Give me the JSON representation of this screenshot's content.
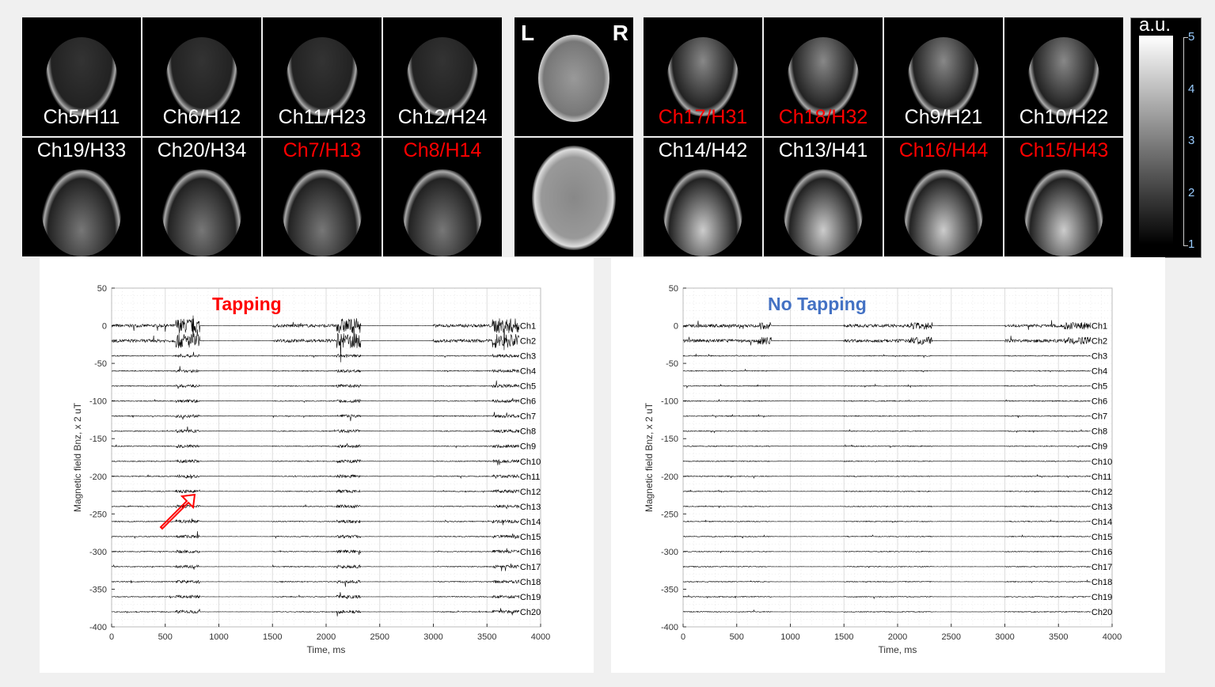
{
  "mri": {
    "left_grid": [
      {
        "label": "Ch5/H11",
        "red": false
      },
      {
        "label": "Ch6/H12",
        "red": false
      },
      {
        "label": "Ch11/H23",
        "red": false
      },
      {
        "label": "Ch12/H24",
        "red": false
      },
      {
        "label": "Ch19/H33",
        "red": false
      },
      {
        "label": "Ch20/H34",
        "red": false
      },
      {
        "label": "Ch7/H13",
        "red": true
      },
      {
        "label": "Ch8/H14",
        "red": true
      }
    ],
    "orientation": {
      "left": "L",
      "right": "R"
    },
    "right_grid": [
      {
        "label": "Ch17/H31",
        "red": true
      },
      {
        "label": "Ch18/H32",
        "red": true
      },
      {
        "label": "Ch9/H21",
        "red": false
      },
      {
        "label": "Ch10/H22",
        "red": false
      },
      {
        "label": "Ch14/H42",
        "red": false
      },
      {
        "label": "Ch13/H41",
        "red": false
      },
      {
        "label": "Ch16/H44",
        "red": true
      },
      {
        "label": "Ch15/H43",
        "red": true
      }
    ],
    "colorbar": {
      "title": "a.u.",
      "ticks": [
        "5",
        "4",
        "3",
        "2",
        "1"
      ],
      "range": [
        1,
        5
      ]
    }
  },
  "chart_data": [
    {
      "type": "line",
      "title": "Tapping",
      "title_color": "#ff0000",
      "xlabel": "Time, ms",
      "ylabel": "Magnetic field Bnz, x 2 uT",
      "xlim": [
        0,
        4000
      ],
      "ylim": [
        -400,
        50
      ],
      "xticks": [
        "0",
        "500",
        "1000",
        "1500",
        "2000",
        "2500",
        "3000",
        "3500",
        "4000"
      ],
      "yticks": [
        "50",
        "0",
        "-50",
        "-100",
        "-150",
        "-200",
        "-250",
        "-300",
        "-350",
        "-400"
      ],
      "grid": true,
      "series_offsets": [
        0,
        -20,
        -40,
        -60,
        -80,
        -100,
        -120,
        -140,
        -160,
        -180,
        -200,
        -220,
        -240,
        -260,
        -280,
        -300,
        -320,
        -340,
        -360,
        -380
      ],
      "series_names": [
        "Ch1",
        "Ch2",
        "Ch3",
        "Ch4",
        "Ch5",
        "Ch6",
        "Ch7",
        "Ch8",
        "Ch9",
        "Ch10",
        "Ch11",
        "Ch12",
        "Ch13",
        "Ch14",
        "Ch15",
        "Ch16",
        "Ch17",
        "Ch18",
        "Ch19",
        "Ch20"
      ],
      "active_intervals_ms": [
        [
          0,
          820
        ],
        [
          1500,
          2320
        ],
        [
          3000,
          3800
        ]
      ],
      "burst_intervals_ms": [
        [
          600,
          820
        ],
        [
          2100,
          2320
        ],
        [
          3550,
          3800
        ]
      ],
      "annotation": "arrow pointing to Ch14-Ch15 near 500 ms"
    },
    {
      "type": "line",
      "title": "No Tapping",
      "title_color": "#4472c4",
      "xlabel": "Time, ms",
      "ylabel": "Magnetic field Bnz, x 2 uT",
      "xlim": [
        0,
        4000
      ],
      "ylim": [
        -400,
        50
      ],
      "xticks": [
        "0",
        "500",
        "1000",
        "1500",
        "2000",
        "2500",
        "3000",
        "3500",
        "4000"
      ],
      "yticks": [
        "50",
        "0",
        "-50",
        "-100",
        "-150",
        "-200",
        "-250",
        "-300",
        "-350",
        "-400"
      ],
      "grid": true,
      "series_offsets": [
        0,
        -20,
        -40,
        -60,
        -80,
        -100,
        -120,
        -140,
        -160,
        -180,
        -200,
        -220,
        -240,
        -260,
        -280,
        -300,
        -320,
        -340,
        -360,
        -380
      ],
      "series_names": [
        "Ch1",
        "Ch2",
        "Ch3",
        "Ch4",
        "Ch5",
        "Ch6",
        "Ch7",
        "Ch8",
        "Ch9",
        "Ch10",
        "Ch11",
        "Ch12",
        "Ch13",
        "Ch14",
        "Ch15",
        "Ch16",
        "Ch17",
        "Ch18",
        "Ch19",
        "Ch20"
      ],
      "active_intervals_ms": [
        [
          0,
          820
        ],
        [
          1500,
          2320
        ],
        [
          3000,
          3800
        ]
      ],
      "burst_intervals_ms": [],
      "annotation": ""
    }
  ]
}
